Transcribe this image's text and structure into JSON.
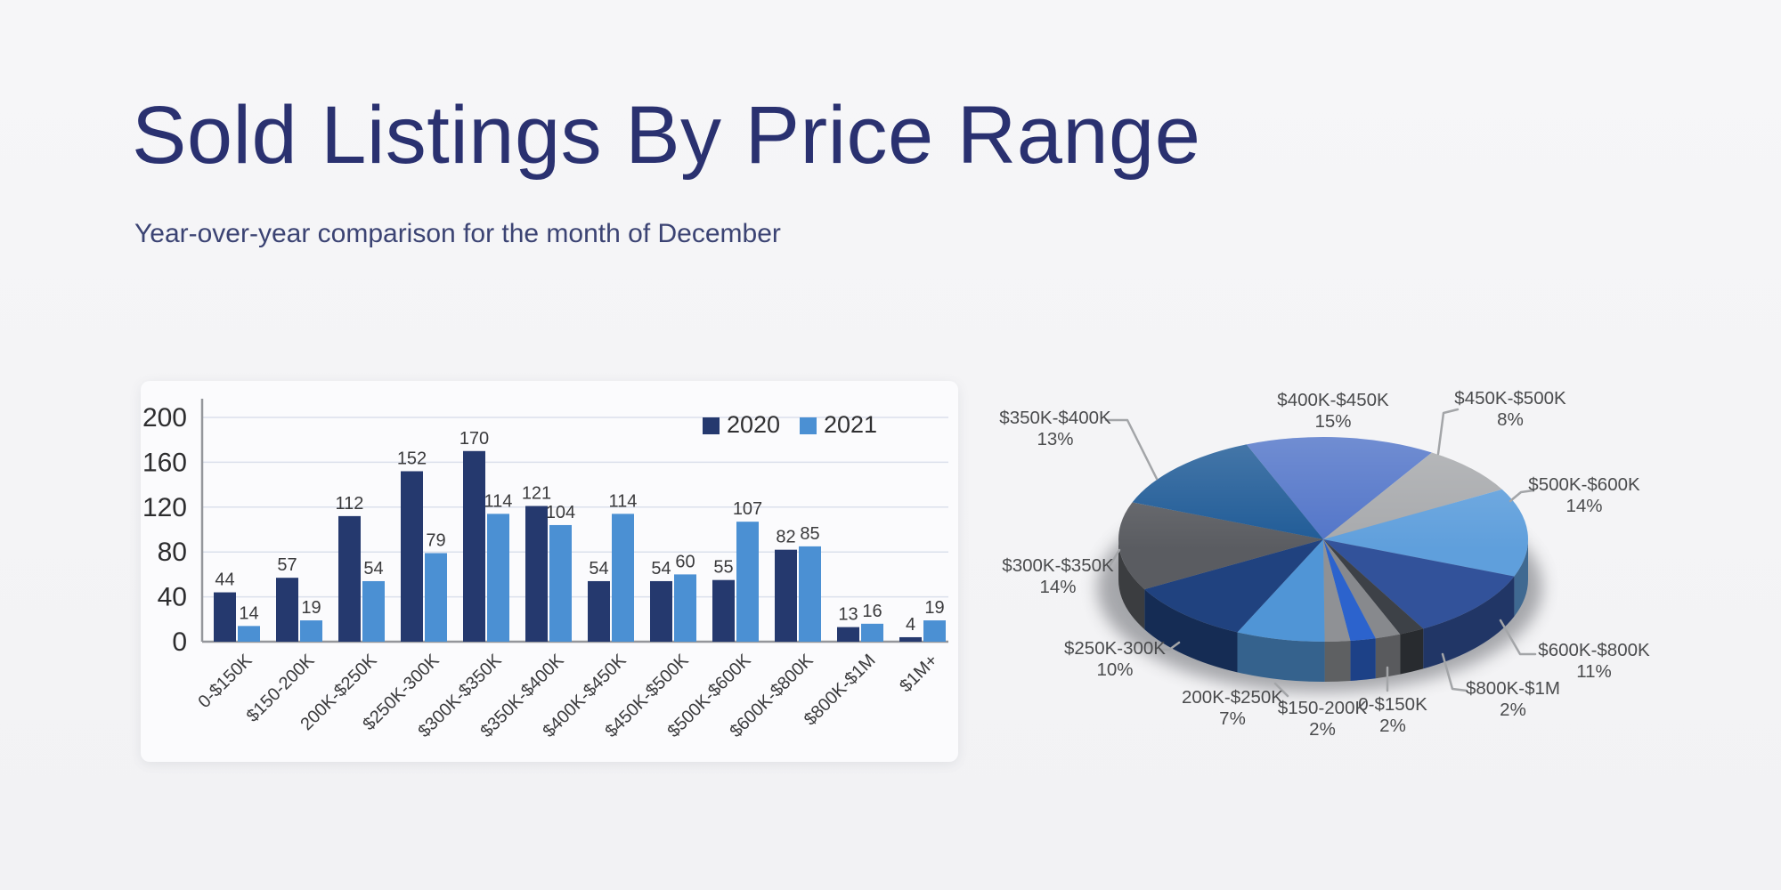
{
  "header": {
    "title": "Sold Listings By Price Range",
    "subtitle": "Year-over-year comparison for the month of December",
    "title_color": "#2a3170",
    "subtitle_color": "#3b4373"
  },
  "chart_data": [
    {
      "type": "bar",
      "title": "",
      "categories": [
        "0-$150K",
        "$150-200K",
        "200K-$250K",
        "$250K-300K",
        "$300K-$350K",
        "$350K-$400K",
        "$400K-$450K",
        "$450K-$500K",
        "$500K-$600K",
        "$600K-$800K",
        "$800K-$1M",
        "$1M+"
      ],
      "series": [
        {
          "name": "2020",
          "color": "#25396e",
          "values": [
            44,
            57,
            112,
            152,
            170,
            121,
            54,
            54,
            55,
            82,
            13,
            4
          ]
        },
        {
          "name": "2021",
          "color": "#4b90d3",
          "values": [
            14,
            19,
            54,
            79,
            114,
            104,
            114,
            60,
            107,
            85,
            16,
            19
          ]
        }
      ],
      "ylabel": "",
      "xlabel": "",
      "ylim": [
        0,
        200
      ],
      "yticks": [
        0,
        40,
        80,
        120,
        160,
        200
      ],
      "grid": true,
      "gridline_color": "#dbe0ec",
      "axis_color": "#94969b",
      "legend_position": "top-right"
    },
    {
      "type": "pie",
      "effect": "3d",
      "start_angle_deg": -22,
      "leader_line_color": "#a3a5a8",
      "slices": [
        {
          "label": "$400K-$450K",
          "pct": 15,
          "color": "#5174c8",
          "labeled": true
        },
        {
          "label": "$450K-$500K",
          "pct": 8,
          "color": "#a7a9ac",
          "labeled": true
        },
        {
          "label": "$500K-$600K",
          "pct": 14,
          "color": "#5f9fdc",
          "labeled": true
        },
        {
          "label": "$600K-$800K",
          "pct": 11,
          "color": "#32529a",
          "labeled": true
        },
        {
          "label": "$800K-$1M",
          "pct": 2,
          "color": "#3d4147",
          "labeled": true
        },
        {
          "label": "$1M+",
          "pct": 2,
          "color": "#87898d",
          "labeled": false
        },
        {
          "label": "0-$150K",
          "pct": 2,
          "color": "#2c63cd",
          "labeled": true
        },
        {
          "label": "$150-200K",
          "pct": 2,
          "color": "#8f9195",
          "labeled": true
        },
        {
          "label": "200K-$250K",
          "pct": 7,
          "color": "#5095d6",
          "labeled": true
        },
        {
          "label": "$250K-300K",
          "pct": 10,
          "color": "#20427f",
          "labeled": true
        },
        {
          "label": "$300K-$350K",
          "pct": 14,
          "color": "#5a5c61",
          "labeled": true
        },
        {
          "label": "$350K-$400K",
          "pct": 13,
          "color": "#1e5a96",
          "labeled": true
        }
      ]
    }
  ]
}
